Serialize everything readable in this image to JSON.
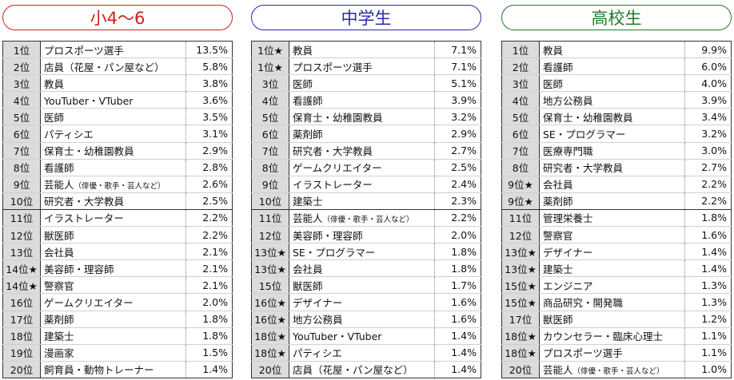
{
  "panels": [
    {
      "id": "elementary",
      "title": "小4〜6",
      "color": "#d02020",
      "rows": [
        {
          "rank": "1位",
          "job": "プロスポーツ選手",
          "pct": "13.5%"
        },
        {
          "rank": "2位",
          "job": "店員（花屋・パン屋など）",
          "pct": "5.8%"
        },
        {
          "rank": "3位",
          "job": "教員",
          "pct": "3.8%"
        },
        {
          "rank": "4位",
          "job": "YouTuber・VTuber",
          "pct": "3.6%"
        },
        {
          "rank": "5位",
          "job": "医師",
          "pct": "3.5%"
        },
        {
          "rank": "6位",
          "job": "パティシエ",
          "pct": "3.1%"
        },
        {
          "rank": "7位",
          "job": "保育士・幼稚園教員",
          "pct": "2.9%"
        },
        {
          "rank": "8位",
          "job": "看護師",
          "pct": "2.8%"
        },
        {
          "rank": "9位",
          "job": "芸能人",
          "sub": "（俳優・歌手・芸人など）",
          "pct": "2.6%"
        },
        {
          "rank": "10位",
          "job": "研究者・大学教員",
          "pct": "2.5%"
        },
        {
          "rank": "11位",
          "job": "イラストレーター",
          "pct": "2.2%"
        },
        {
          "rank": "12位",
          "job": "獣医師",
          "pct": "2.2%"
        },
        {
          "rank": "13位",
          "job": "会社員",
          "pct": "2.1%"
        },
        {
          "rank": "14位★",
          "job": "美容師・理容師",
          "pct": "2.1%"
        },
        {
          "rank": "14位★",
          "job": "警察官",
          "pct": "2.1%"
        },
        {
          "rank": "16位",
          "job": "ゲームクリエイター",
          "pct": "2.0%"
        },
        {
          "rank": "17位",
          "job": "薬剤師",
          "pct": "1.8%"
        },
        {
          "rank": "18位",
          "job": "建築士",
          "pct": "1.8%"
        },
        {
          "rank": "19位",
          "job": "漫画家",
          "pct": "1.5%"
        },
        {
          "rank": "20位",
          "job": "飼育員・動物トレーナー",
          "pct": "1.4%"
        }
      ]
    },
    {
      "id": "junior-high",
      "title": "中学生",
      "color": "#2a2aa8",
      "rows": [
        {
          "rank": "1位★",
          "job": "教員",
          "pct": "7.1%"
        },
        {
          "rank": "1位★",
          "job": "プロスポーツ選手",
          "pct": "7.1%"
        },
        {
          "rank": "3位",
          "job": "医師",
          "pct": "5.1%"
        },
        {
          "rank": "4位",
          "job": "看護師",
          "pct": "3.9%"
        },
        {
          "rank": "5位",
          "job": "保育士・幼稚園教員",
          "pct": "3.2%"
        },
        {
          "rank": "6位",
          "job": "薬剤師",
          "pct": "2.9%"
        },
        {
          "rank": "7位",
          "job": "研究者・大学教員",
          "pct": "2.7%"
        },
        {
          "rank": "8位",
          "job": "ゲームクリエイター",
          "pct": "2.5%"
        },
        {
          "rank": "9位",
          "job": "イラストレーター",
          "pct": "2.4%"
        },
        {
          "rank": "10位",
          "job": "建築士",
          "pct": "2.3%"
        },
        {
          "rank": "11位",
          "job": "芸能人",
          "sub": "（俳優・歌手・芸人など）",
          "pct": "2.2%"
        },
        {
          "rank": "12位",
          "job": "美容師・理容師",
          "pct": "2.0%"
        },
        {
          "rank": "13位★",
          "job": "SE・プログラマー",
          "pct": "1.8%"
        },
        {
          "rank": "13位★",
          "job": "会社員",
          "pct": "1.8%"
        },
        {
          "rank": "15位",
          "job": "獣医師",
          "pct": "1.7%"
        },
        {
          "rank": "16位★",
          "job": "デザイナー",
          "pct": "1.6%"
        },
        {
          "rank": "16位★",
          "job": "地方公務員",
          "pct": "1.6%"
        },
        {
          "rank": "18位★",
          "job": "YouTuber・VTuber",
          "pct": "1.4%"
        },
        {
          "rank": "18位★",
          "job": "パティシエ",
          "pct": "1.4%"
        },
        {
          "rank": "20位",
          "job": "店員（花屋・パン屋など）",
          "pct": "1.4%"
        }
      ]
    },
    {
      "id": "high-school",
      "title": "高校生",
      "color": "#1f7a2a",
      "rows": [
        {
          "rank": "1位",
          "job": "教員",
          "pct": "9.9%"
        },
        {
          "rank": "2位",
          "job": "看護師",
          "pct": "6.0%"
        },
        {
          "rank": "3位",
          "job": "医師",
          "pct": "4.0%"
        },
        {
          "rank": "4位",
          "job": "地方公務員",
          "pct": "3.9%"
        },
        {
          "rank": "5位",
          "job": "保育士・幼稚園教員",
          "pct": "3.4%"
        },
        {
          "rank": "6位",
          "job": "SE・プログラマー",
          "pct": "3.2%"
        },
        {
          "rank": "7位",
          "job": "医療専門職",
          "pct": "3.0%"
        },
        {
          "rank": "8位",
          "job": "研究者・大学教員",
          "pct": "2.7%"
        },
        {
          "rank": "9位★",
          "job": "会社員",
          "pct": "2.2%"
        },
        {
          "rank": "9位★",
          "job": "薬剤師",
          "pct": "2.2%"
        },
        {
          "rank": "11位",
          "job": "管理栄養士",
          "pct": "1.8%"
        },
        {
          "rank": "12位",
          "job": "警察官",
          "pct": "1.6%"
        },
        {
          "rank": "13位★",
          "job": "デザイナー",
          "pct": "1.4%"
        },
        {
          "rank": "13位★",
          "job": "建築士",
          "pct": "1.4%"
        },
        {
          "rank": "15位★",
          "job": "エンジニア",
          "pct": "1.3%"
        },
        {
          "rank": "15位★",
          "job": "商品研究・開発職",
          "pct": "1.3%"
        },
        {
          "rank": "17位",
          "job": "獣医師",
          "pct": "1.2%"
        },
        {
          "rank": "18位★",
          "job": "カウンセラー・臨床心理士",
          "pct": "1.1%"
        },
        {
          "rank": "18位★",
          "job": "プロスポーツ選手",
          "pct": "1.1%"
        },
        {
          "rank": "20位",
          "job": "芸能人",
          "sub": "（俳優・歌手・芸人など）",
          "pct": "1.0%"
        }
      ]
    }
  ]
}
